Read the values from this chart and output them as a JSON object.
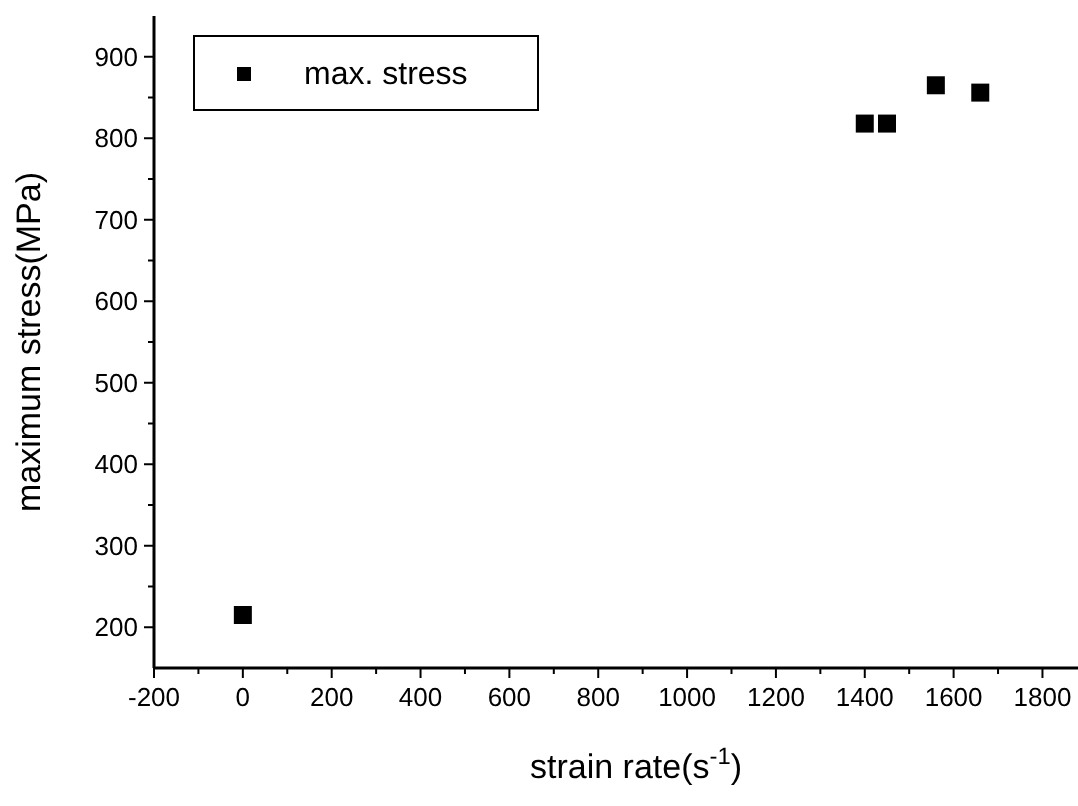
{
  "chart_data": {
    "type": "scatter",
    "xlabel": "strain rate(s$^{-1}$)",
    "ylabel": "maximum stress(MPa)",
    "x": [
      0,
      1400,
      1450,
      1560,
      1660
    ],
    "series": [
      {
        "name": "max. stress",
        "color": "#000000",
        "values": [
          215,
          818,
          818,
          865,
          856
        ]
      }
    ],
    "xlim": [
      -200,
      1880
    ],
    "xticks": [
      -200,
      0,
      200,
      400,
      600,
      800,
      1000,
      1200,
      1400,
      1600,
      1800
    ],
    "ylim": [
      150,
      950
    ],
    "yticks": [
      200,
      300,
      400,
      500,
      600,
      700,
      800,
      900
    ],
    "marker": "square",
    "legend": "top left",
    "grid": false
  }
}
